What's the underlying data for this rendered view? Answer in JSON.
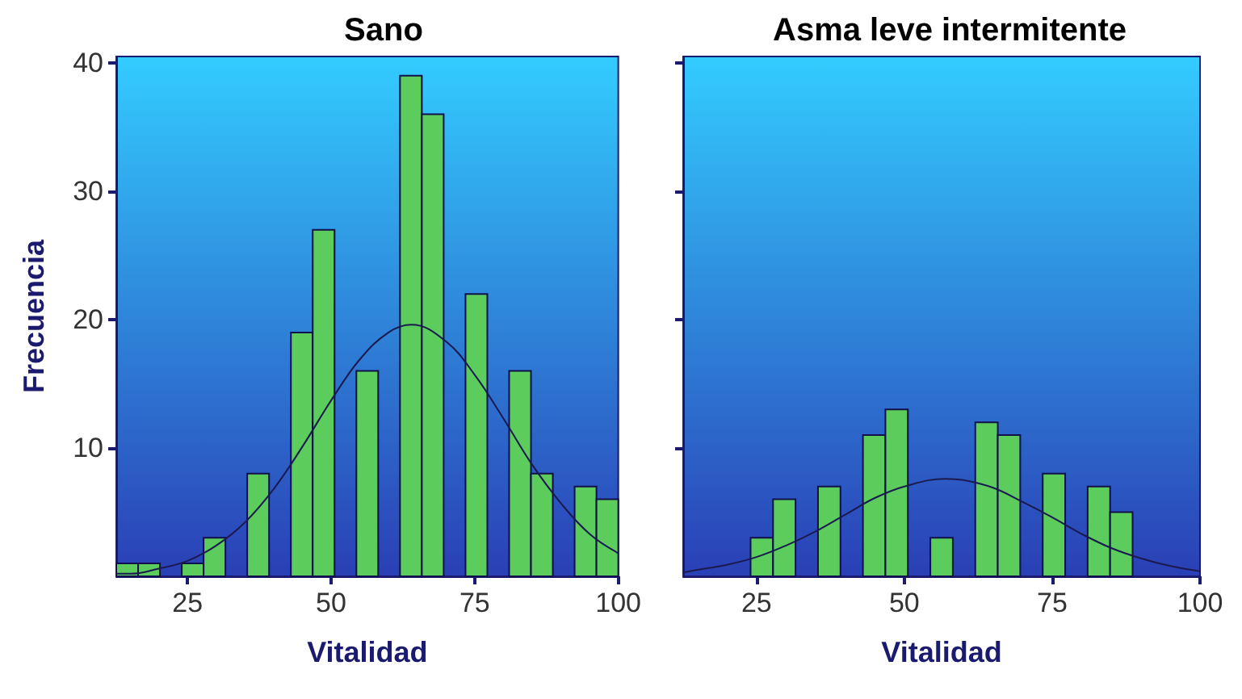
{
  "chart_data": [
    {
      "type": "histogram",
      "title": "Sano",
      "xlabel": "Vitalidad",
      "ylabel": "Frecuencia",
      "xlim": [
        12.6,
        100
      ],
      "xticks": [
        25,
        50,
        75,
        100
      ],
      "ylim": [
        0,
        40.5
      ],
      "yticks": [
        10,
        20,
        30,
        40
      ],
      "grid": false,
      "series": [
        {
          "type": "histogram",
          "color": "#5ccc5c",
          "bins": [
            12.6,
            16.4,
            20.2,
            24,
            27.8,
            31.6,
            35.4,
            39.2,
            43,
            46.8,
            50.6,
            54.4,
            58.2,
            62,
            65.8,
            69.6,
            73.4,
            77.2,
            81,
            84.8,
            88.6,
            92.4,
            96.2,
            100
          ],
          "values": [
            1,
            1,
            0,
            1,
            3,
            0,
            8,
            0,
            19,
            27,
            0,
            16,
            0,
            39,
            36,
            0,
            22,
            0,
            16,
            8,
            0,
            7,
            6
          ]
        },
        {
          "type": "line",
          "color": "#1a1a50",
          "marker": "none",
          "x": [
            12.6,
            15,
            20,
            25,
            30,
            35,
            40,
            45,
            50,
            55,
            60,
            64,
            70,
            75,
            80,
            85,
            90,
            95,
            100
          ],
          "values": [
            0.2,
            0.2,
            0.6,
            1.2,
            2.4,
            4.2,
            6.8,
            10.1,
            13.7,
            16.9,
            19.0,
            19.6,
            18.3,
            15.7,
            12.3,
            8.7,
            5.7,
            3.3,
            1.8
          ]
        }
      ]
    },
    {
      "type": "histogram",
      "title": "Asma leve intermitente",
      "xlabel": "Vitalidad",
      "xlim": [
        12.6,
        100
      ],
      "xticks": [
        25,
        50,
        75,
        100
      ],
      "ylim": [
        0,
        40.5
      ],
      "yticks": [
        10,
        20,
        30,
        40
      ],
      "tick_labels": "x",
      "grid": false,
      "series": [
        {
          "type": "histogram",
          "color": "#5ccc5c",
          "bins": [
            12.6,
            16.4,
            20.2,
            24,
            27.8,
            31.6,
            35.4,
            39.2,
            43,
            46.8,
            50.6,
            54.4,
            58.2,
            62,
            65.8,
            69.6,
            73.4,
            77.2,
            81,
            84.8,
            88.6,
            92.4,
            96.2,
            100
          ],
          "values": [
            0,
            0,
            0,
            3,
            6,
            0,
            7,
            0,
            11,
            13,
            0,
            3,
            0,
            12,
            11,
            0,
            8,
            0,
            7,
            5,
            0,
            0,
            0
          ]
        },
        {
          "type": "line",
          "color": "#1a1a50",
          "marker": "none",
          "x": [
            12.6,
            15,
            20,
            25,
            30,
            35,
            40,
            45,
            50,
            57,
            60,
            65,
            70,
            75,
            80,
            85,
            90,
            95,
            100
          ],
          "values": [
            0.3,
            0.5,
            0.9,
            1.5,
            2.4,
            3.5,
            4.8,
            6.1,
            7.0,
            7.6,
            7.5,
            6.9,
            5.8,
            4.6,
            3.3,
            2.2,
            1.4,
            0.8,
            0.4
          ]
        }
      ]
    }
  ]
}
